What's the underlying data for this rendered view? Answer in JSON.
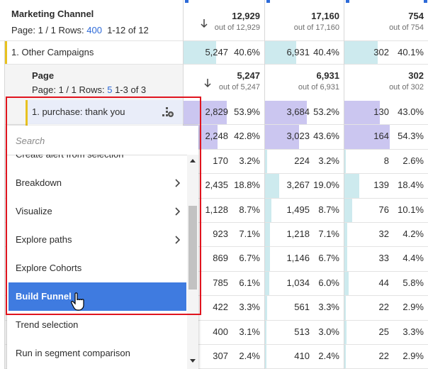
{
  "table": {
    "header": {
      "title": "Marketing Channel",
      "page_info": "Page: 1 / 1 Rows:",
      "rows_value": "400",
      "range": "1-12 of 12",
      "columns": [
        {
          "total": "12,929",
          "sub": "out of 12,929"
        },
        {
          "total": "17,160",
          "sub": "out of 17,160"
        },
        {
          "total": "754",
          "sub": "out of 754"
        }
      ]
    },
    "rows": [
      {
        "label": "1.  Other Campaigns",
        "cells": [
          [
            "5,247",
            "40.6%"
          ],
          [
            "6,931",
            "40.4%"
          ],
          [
            "302",
            "40.1%"
          ]
        ]
      }
    ],
    "sub_header": {
      "title": "Page",
      "page_info": "Page: 1 / 1 Rows:",
      "rows_value": "5",
      "range": "1-3 of 3",
      "columns": [
        {
          "total": "5,247",
          "sub": "out of 5,247"
        },
        {
          "total": "6,931",
          "sub": "out of 6,931"
        },
        {
          "total": "302",
          "sub": "out of 302"
        }
      ]
    },
    "sub_rows": [
      {
        "label": "1.  purchase: thank you",
        "cells": [
          [
            "2,829",
            "53.9%"
          ],
          [
            "3,684",
            "53.2%"
          ],
          [
            "130",
            "43.0%"
          ]
        ]
      },
      {
        "cells": [
          [
            "2,248",
            "42.8%"
          ],
          [
            "3,023",
            "43.6%"
          ],
          [
            "164",
            "54.3%"
          ]
        ]
      },
      {
        "cells": [
          [
            "170",
            "3.2%"
          ],
          [
            "224",
            "3.2%"
          ],
          [
            "8",
            "2.6%"
          ]
        ]
      },
      {
        "cells": [
          [
            "2,435",
            "18.8%"
          ],
          [
            "3,267",
            "19.0%"
          ],
          [
            "139",
            "18.4%"
          ]
        ]
      },
      {
        "cells": [
          [
            "1,128",
            "8.7%"
          ],
          [
            "1,495",
            "8.7%"
          ],
          [
            "76",
            "10.1%"
          ]
        ]
      },
      {
        "cells": [
          [
            "923",
            "7.1%"
          ],
          [
            "1,218",
            "7.1%"
          ],
          [
            "32",
            "4.2%"
          ]
        ]
      },
      {
        "cells": [
          [
            "869",
            "6.7%"
          ],
          [
            "1,146",
            "6.7%"
          ],
          [
            "33",
            "4.4%"
          ]
        ]
      },
      {
        "cells": [
          [
            "785",
            "6.1%"
          ],
          [
            "1,034",
            "6.0%"
          ],
          [
            "44",
            "5.8%"
          ]
        ]
      },
      {
        "cells": [
          [
            "422",
            "3.3%"
          ],
          [
            "561",
            "3.3%"
          ],
          [
            "22",
            "2.9%"
          ]
        ]
      },
      {
        "cells": [
          [
            "400",
            "3.1%"
          ],
          [
            "513",
            "3.0%"
          ],
          [
            "25",
            "3.3%"
          ]
        ]
      },
      {
        "cells": [
          [
            "307",
            "2.4%"
          ],
          [
            "410",
            "2.4%"
          ],
          [
            "22",
            "2.9%"
          ]
        ]
      }
    ]
  },
  "menu": {
    "search_placeholder": "Search",
    "active_index": 5,
    "items": [
      {
        "label": "Create alert from selection",
        "submenu": false
      },
      {
        "label": "Breakdown",
        "submenu": true
      },
      {
        "label": "Visualize",
        "submenu": true
      },
      {
        "label": "Explore paths",
        "submenu": true
      },
      {
        "label": "Explore Cohorts",
        "submenu": false
      },
      {
        "label": "Build Funnel",
        "submenu": false
      },
      {
        "label": "Trend selection",
        "submenu": false
      },
      {
        "label": "Run in segment comparison",
        "submenu": false
      }
    ]
  }
}
